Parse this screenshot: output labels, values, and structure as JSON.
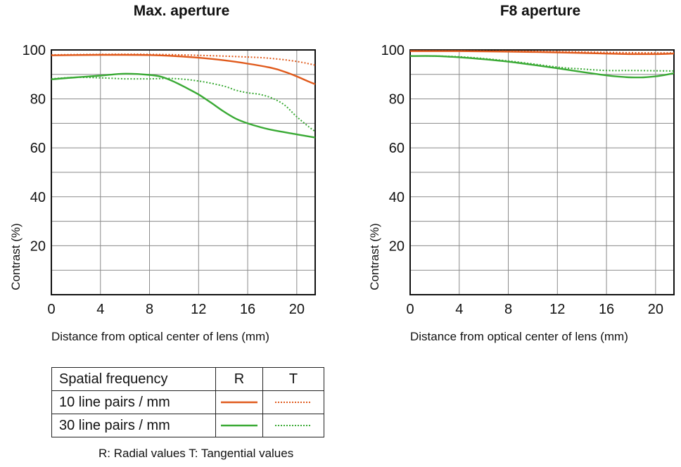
{
  "chart_data": [
    {
      "type": "line",
      "title": "Max. aperture",
      "xlabel": "Distance from optical center of lens (mm)",
      "ylabel": "Contrast (%)",
      "xlim": [
        0,
        21.5
      ],
      "ylim": [
        0,
        100
      ],
      "xticks": [
        "0",
        "4",
        "8",
        "12",
        "16",
        "20"
      ],
      "yticks": [
        "20",
        "40",
        "60",
        "80",
        "100"
      ],
      "grid": true,
      "series": [
        {
          "name": "10 line pairs / mm R",
          "color": "#e05a1c",
          "style": "solid",
          "x": [
            0,
            2,
            4,
            6,
            8,
            10,
            12,
            14,
            16,
            18,
            19,
            20,
            21,
            21.5
          ],
          "y": [
            97.8,
            97.9,
            98.0,
            98.0,
            97.9,
            97.5,
            96.8,
            95.8,
            94.4,
            92.6,
            91.1,
            89.2,
            87.0,
            86.0
          ]
        },
        {
          "name": "10 line pairs / mm T",
          "color": "#e05a1c",
          "style": "dotted",
          "x": [
            0,
            4,
            8,
            12,
            16,
            18,
            20,
            21.5
          ],
          "y": [
            98.0,
            98.2,
            98.2,
            97.8,
            97.1,
            96.5,
            95.3,
            93.8
          ]
        },
        {
          "name": "30 line pairs / mm R",
          "color": "#3aaa35",
          "style": "solid",
          "x": [
            0,
            2,
            4,
            6,
            8,
            9,
            10,
            11,
            12,
            13,
            14,
            15,
            16,
            17,
            18,
            20,
            21.5
          ],
          "y": [
            88.0,
            88.8,
            89.5,
            90.3,
            89.8,
            89.0,
            87.0,
            84.5,
            81.8,
            78.5,
            75.0,
            72.0,
            70.0,
            68.5,
            67.3,
            65.5,
            64.2
          ]
        },
        {
          "name": "30 line pairs / mm T",
          "color": "#3aaa35",
          "style": "dotted",
          "x": [
            0,
            2,
            4,
            6,
            8,
            10,
            12,
            14,
            15,
            16,
            17,
            18,
            19,
            20,
            21,
            21.5
          ],
          "y": [
            88.2,
            88.8,
            88.6,
            88.2,
            88.2,
            88.3,
            87.3,
            85.3,
            83.6,
            82.5,
            81.8,
            80.3,
            77.5,
            72.7,
            68.5,
            66.7
          ]
        }
      ]
    },
    {
      "type": "line",
      "title": "F8 aperture",
      "xlabel": "Distance from optical center of lens (mm)",
      "ylabel": "Contrast (%)",
      "xlim": [
        0,
        21.5
      ],
      "ylim": [
        0,
        100
      ],
      "xticks": [
        "0",
        "4",
        "8",
        "12",
        "16",
        "20"
      ],
      "yticks": [
        "20",
        "40",
        "60",
        "80",
        "100"
      ],
      "grid": true,
      "series": [
        {
          "name": "10 line pairs / mm R",
          "color": "#e05a1c",
          "style": "solid",
          "x": [
            0,
            4,
            8,
            12,
            16,
            18,
            20,
            21.5
          ],
          "y": [
            99.5,
            99.5,
            99.3,
            99.0,
            98.5,
            98.3,
            98.3,
            98.5
          ]
        },
        {
          "name": "10 line pairs / mm T",
          "color": "#e05a1c",
          "style": "dotted",
          "x": [
            0,
            4,
            8,
            12,
            16,
            20,
            21.5
          ],
          "y": [
            99.6,
            99.6,
            99.5,
            99.3,
            99.0,
            98.8,
            98.8
          ]
        },
        {
          "name": "30 line pairs / mm R",
          "color": "#3aaa35",
          "style": "solid",
          "x": [
            0,
            2,
            4,
            6,
            8,
            10,
            12,
            14,
            16,
            17,
            18,
            19,
            20,
            21,
            21.5
          ],
          "y": [
            97.5,
            97.5,
            97.0,
            96.2,
            95.2,
            93.9,
            92.5,
            91.0,
            89.6,
            89.1,
            88.8,
            88.8,
            89.2,
            90.0,
            90.5
          ]
        },
        {
          "name": "30 line pairs / mm T",
          "color": "#3aaa35",
          "style": "dotted",
          "x": [
            0,
            4,
            8,
            12,
            14,
            16,
            18,
            20,
            21.5
          ],
          "y": [
            97.6,
            97.2,
            95.5,
            93.0,
            92.2,
            91.6,
            91.6,
            91.5,
            91.4
          ]
        }
      ]
    }
  ],
  "legend_table": {
    "header": {
      "label": "Spatial frequency",
      "r": "R",
      "t": "T"
    },
    "rows": [
      {
        "label": "10 line pairs / mm",
        "color": "#e05a1c"
      },
      {
        "label": "30 line pairs / mm",
        "color": "#3aaa35"
      }
    ]
  },
  "footnote": "R: Radial values  T: Tangential values"
}
